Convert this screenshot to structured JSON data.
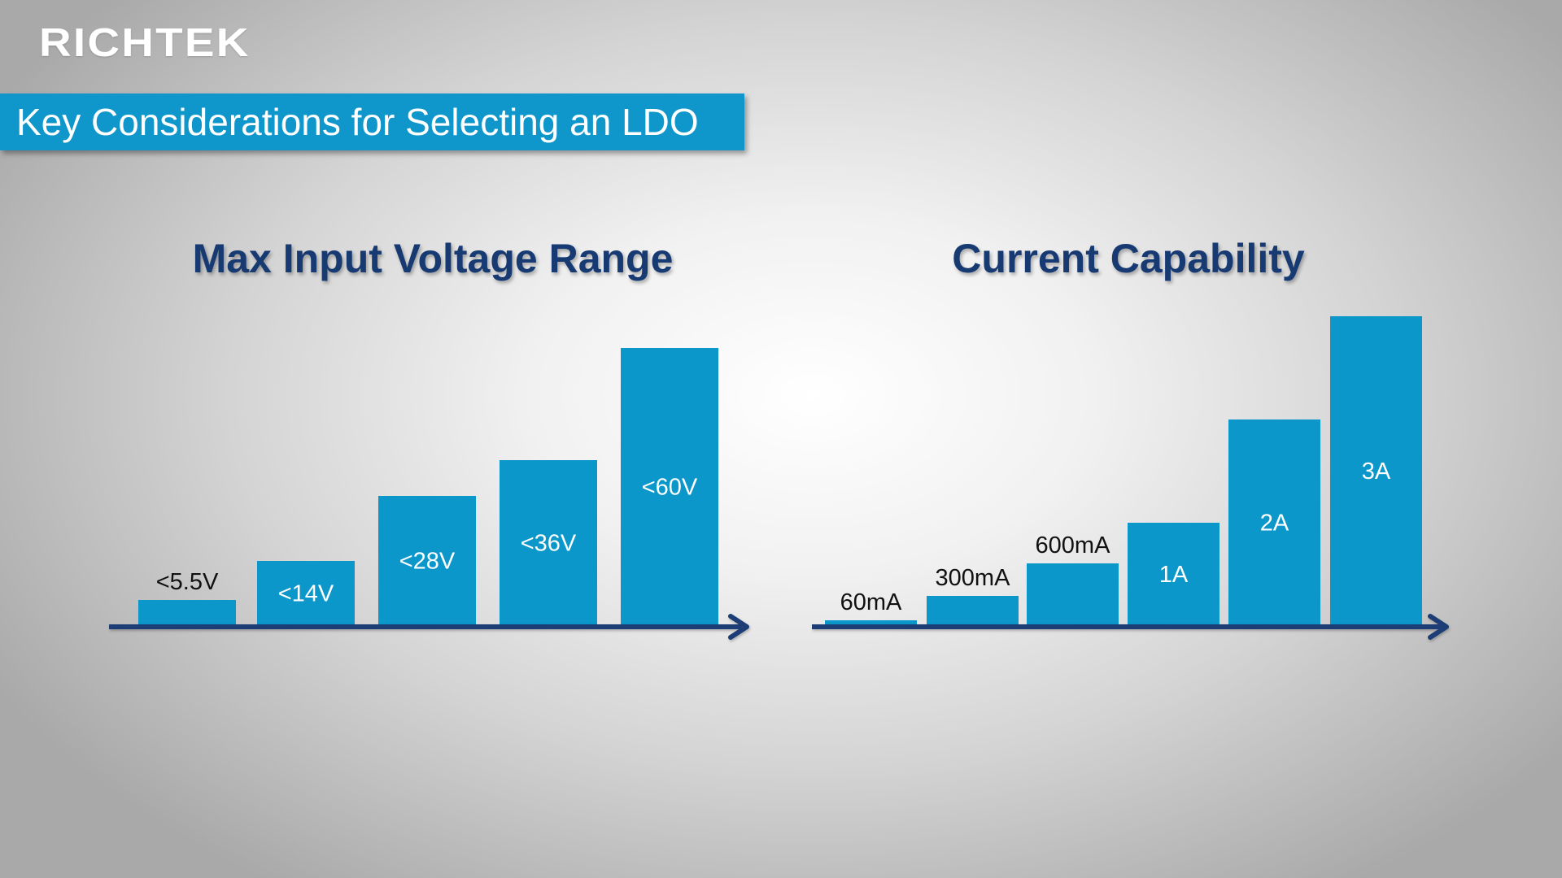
{
  "logo": {
    "text": "RICHTEK"
  },
  "slide": {
    "title": "Key Considerations for Selecting an LDO"
  },
  "colors": {
    "bar": "#0b97c9",
    "axis": "#1c3e74",
    "title_bar": "#0f97cb",
    "chart_title": "#173a72"
  },
  "chart_data": [
    {
      "type": "bar",
      "title": "Max Input Voltage Range",
      "categories": [
        "<5.5V",
        "<14V",
        "<28V",
        "<36V",
        "<60V"
      ],
      "values": [
        5.5,
        14,
        28,
        36,
        60
      ],
      "xlabel": "",
      "ylabel": "",
      "grid": false
    },
    {
      "type": "bar",
      "title": "Current Capability",
      "categories": [
        "60mA",
        "300mA",
        "600mA",
        "1A",
        "2A",
        "3A"
      ],
      "values": [
        0.06,
        0.3,
        0.6,
        1,
        2,
        3
      ],
      "xlabel": "",
      "ylabel": "",
      "grid": false
    }
  ]
}
